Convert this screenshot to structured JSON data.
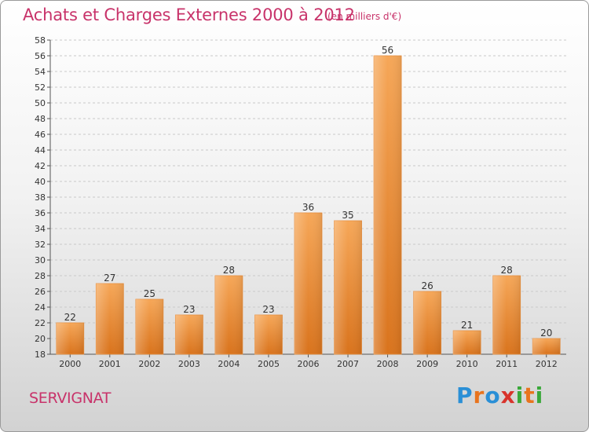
{
  "title": "Achats et Charges Externes 2000 à 2012",
  "subtitle": "(en milliers d'€)",
  "commune": "SERVIGNAT",
  "logo": {
    "text": "Proxiti",
    "colors": [
      "#2a8fd6",
      "#e8741e",
      "#2a8fd6",
      "#d8332b",
      "#3aa83a",
      "#e8741e",
      "#3aa83a"
    ]
  },
  "chart_data": {
    "type": "bar",
    "categories": [
      "2000",
      "2001",
      "2002",
      "2003",
      "2004",
      "2005",
      "2006",
      "2007",
      "2008",
      "2009",
      "2010",
      "2011",
      "2012"
    ],
    "values": [
      22,
      27,
      25,
      23,
      28,
      23,
      36,
      35,
      56,
      26,
      21,
      28,
      20
    ],
    "ylim": [
      18,
      58
    ],
    "ytick_step": 2,
    "grid": true,
    "bar_color": "#f0923a"
  }
}
